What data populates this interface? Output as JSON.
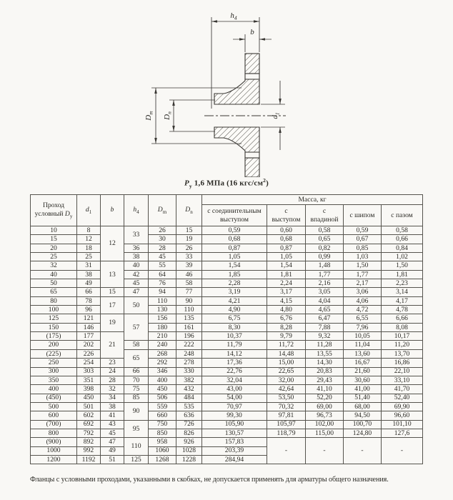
{
  "page": {
    "background": "#f9f8f5",
    "ink": "#2b2a25"
  },
  "drawing": {
    "dims": {
      "h4": {
        "base": "h",
        "sub": "4"
      },
      "b": {
        "base": "b",
        "sub": ""
      },
      "dm": {
        "base": "D",
        "sub": "m"
      },
      "dn": {
        "base": "D",
        "sub": "n"
      },
      "d1": {
        "base": "d",
        "sub": "1"
      }
    }
  },
  "caption": {
    "sym": "P",
    "sym_sub": "у",
    "text": " 1,6 МПа (16 кгс/см",
    "sup": "2",
    "close": ")"
  },
  "table": {
    "head": {
      "col_dy": {
        "line1": "Проход",
        "line2": "условный ",
        "sym": "D",
        "sub": "у"
      },
      "col_d1": {
        "sym": "d",
        "sub": "1"
      },
      "col_b": {
        "sym": "b",
        "sub": ""
      },
      "col_h4": {
        "sym": "h",
        "sub": "4"
      },
      "col_dm": {
        "sym": "D",
        "sub": "m"
      },
      "col_dn": {
        "sym": "D",
        "sub": "n"
      },
      "mass_title": "Масса, кг",
      "mass_cols": [
        "с соединительным\nвыступом",
        "с\nвыступом",
        "с\nвпадиной",
        "с шипом",
        "с пазом"
      ]
    },
    "rows": [
      [
        "10",
        "8",
        {
          "v": "12",
          "rs": 4
        },
        {
          "v": "33",
          "rs": 2
        },
        "26",
        "15",
        "0,59",
        "0,60",
        "0,58",
        "0,59",
        "0,58"
      ],
      [
        "15",
        "12",
        null,
        null,
        "30",
        "19",
        "0,68",
        "0,68",
        "0,65",
        "0,67",
        "0,66"
      ],
      [
        "20",
        "18",
        null,
        "36",
        "28",
        "26",
        "0,87",
        "0,87",
        "0,82",
        "0,85",
        "0,84"
      ],
      [
        "25",
        "25",
        null,
        "38",
        "45",
        "33",
        "1,05",
        "1,05",
        "0,99",
        "1,03",
        "1,02"
      ],
      [
        "32",
        "31",
        {
          "v": "13",
          "rs": 3
        },
        "40",
        "55",
        "39",
        "1,54",
        "1,54",
        "1,48",
        "1,50",
        "1,50"
      ],
      [
        "40",
        "38",
        null,
        "42",
        "64",
        "46",
        "1,85",
        "1,81",
        "1,77",
        "1,77",
        "1,81"
      ],
      [
        "50",
        "49",
        null,
        "45",
        "76",
        "58",
        "2,28",
        "2,24",
        "2,16",
        "2,17",
        "2,23"
      ],
      [
        "65",
        "66",
        "15",
        "47",
        "94",
        "77",
        "3,19",
        "3,17",
        "3,05",
        "3,06",
        "3,14"
      ],
      [
        "80",
        "78",
        {
          "v": "17",
          "rs": 2
        },
        {
          "v": "50",
          "rs": 2
        },
        "110",
        "90",
        "4,21",
        "4,15",
        "4,04",
        "4,06",
        "4,17"
      ],
      [
        "100",
        "96",
        null,
        null,
        "130",
        "110",
        "4,90",
        "4,80",
        "4,65",
        "4,72",
        "4,78"
      ],
      [
        "125",
        "121",
        {
          "v": "19",
          "rs": 2
        },
        {
          "v": "57",
          "rs": 3
        },
        "156",
        "135",
        "6,75",
        "6,76",
        "6,47",
        "6,55",
        "6,66"
      ],
      [
        "150",
        "146",
        null,
        null,
        "180",
        "161",
        "8,30",
        "8,28",
        "7,88",
        "7,96",
        "8,08"
      ],
      [
        "(175)",
        "177",
        {
          "v": "21",
          "rs": 3
        },
        null,
        "210",
        "196",
        "10,37",
        "9,79",
        "9,32",
        "10,05",
        "10,17"
      ],
      [
        "200",
        "202",
        null,
        "58",
        "240",
        "222",
        "11,79",
        "11,72",
        "11,28",
        "11,04",
        "11,20"
      ],
      [
        "(225)",
        "226",
        null,
        {
          "v": "65",
          "rs": 2
        },
        "268",
        "248",
        "14,12",
        "14,48",
        "13,55",
        "13,60",
        "13,70"
      ],
      [
        "250",
        "254",
        "23",
        null,
        "292",
        "278",
        "17,36",
        "15,00",
        "14,30",
        "16,67",
        "16,86"
      ],
      [
        "300",
        "303",
        "24",
        "66",
        "346",
        "330",
        "22,76",
        "22,65",
        "20,83",
        "21,60",
        "22,10"
      ],
      [
        "350",
        "351",
        "28",
        "70",
        "400",
        "382",
        "32,04",
        "32,00",
        "29,43",
        "30,60",
        "33,10"
      ],
      [
        "400",
        "398",
        "32",
        "75",
        "450",
        "432",
        "43,00",
        "42,64",
        "41,10",
        "41,00",
        "41,70"
      ],
      [
        "(450)",
        "450",
        "34",
        "85",
        "506",
        "484",
        "54,00",
        "53,50",
        "52,20",
        "51,40",
        "52,40"
      ],
      [
        "500",
        "501",
        "38",
        {
          "v": "90",
          "rs": 2
        },
        "559",
        "535",
        "70,97",
        "70,32",
        "69,00",
        "68,00",
        "69,90"
      ],
      [
        "600",
        "602",
        "41",
        null,
        "660",
        "636",
        "99,30",
        "97,81",
        "96,73",
        "94,50",
        "96,60"
      ],
      [
        "(700)",
        "692",
        "43",
        {
          "v": "95",
          "rs": 2
        },
        "750",
        "726",
        "105,90",
        "105,97",
        "102,00",
        "100,70",
        "101,10"
      ],
      [
        "800",
        "792",
        "45",
        null,
        "850",
        "826",
        "130,57",
        "118,79",
        "115,00",
        "124,80",
        "127,6"
      ],
      [
        "(900)",
        "892",
        "47",
        {
          "v": "110",
          "rs": 2
        },
        "958",
        "926",
        "157,83",
        {
          "v": "-",
          "rs": 3
        },
        {
          "v": "-",
          "rs": 3
        },
        {
          "v": "-",
          "rs": 3
        },
        {
          "v": "-",
          "rs": 3
        }
      ],
      [
        "1000",
        "992",
        "49",
        null,
        "1060",
        "1028",
        "203,39"
      ],
      [
        "1200",
        "1192",
        "51",
        "125",
        "1268",
        "1228",
        "284,94"
      ]
    ]
  },
  "footnote": "Фланцы с условными проходами, указанными в скобках, не допускается применять для арматуры общего назначения."
}
